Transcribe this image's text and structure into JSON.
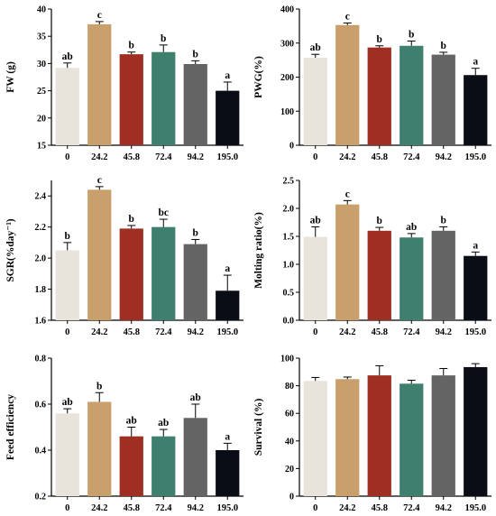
{
  "colors": [
    "#e8e4dc",
    "#c9a06c",
    "#9e2f22",
    "#3f7f6e",
    "#646464",
    "#0a0d16"
  ],
  "chart_data": [
    {
      "type": "bar",
      "ylabel": "FW (g)",
      "categories": [
        "0",
        "24.2",
        "45.8",
        "72.4",
        "94.2",
        "195.0"
      ],
      "values": [
        29.2,
        37.2,
        31.7,
        32.1,
        29.9,
        25.0
      ],
      "errors": [
        0.9,
        0.5,
        0.4,
        1.3,
        0.6,
        1.6
      ],
      "letters": [
        "ab",
        "c",
        "b",
        "b",
        "b",
        "a"
      ],
      "ylim": [
        15,
        40
      ],
      "yticks": [
        15,
        20,
        25,
        30,
        35,
        40
      ],
      "ytick_labels": [
        "15",
        "20",
        "25",
        "30",
        "35",
        "40"
      ]
    },
    {
      "type": "bar",
      "ylabel": "PWG(%)",
      "categories": [
        "0",
        "24.2",
        "45.8",
        "72.4",
        "94.2",
        "195.0"
      ],
      "values": [
        257,
        353,
        287,
        292,
        266,
        206
      ],
      "errors": [
        10,
        6,
        5,
        14,
        7,
        20
      ],
      "letters": [
        "ab",
        "c",
        "b",
        "b",
        "b",
        "a"
      ],
      "ylim": [
        0,
        400
      ],
      "yticks": [
        0,
        100,
        200,
        300,
        400
      ],
      "ytick_labels": [
        "0",
        "100",
        "200",
        "300",
        "400"
      ]
    },
    {
      "type": "bar",
      "ylabel": "SGR(%day⁻¹)",
      "categories": [
        "0",
        "24.2",
        "45.8",
        "72.4",
        "94.2",
        "195.0"
      ],
      "values": [
        2.05,
        2.44,
        2.19,
        2.2,
        2.09,
        1.79
      ],
      "errors": [
        0.05,
        0.02,
        0.02,
        0.05,
        0.03,
        0.1
      ],
      "letters": [
        "b",
        "c",
        "b",
        "bc",
        "b",
        "a"
      ],
      "ylim": [
        1.6,
        2.5
      ],
      "yticks": [
        1.6,
        1.8,
        2.0,
        2.2,
        2.4
      ],
      "ytick_labels": [
        "1.6",
        "1.8",
        "2.0",
        "2.2",
        "2.4"
      ]
    },
    {
      "type": "bar",
      "ylabel": "Molting ratio(%)",
      "categories": [
        "0",
        "24.2",
        "45.8",
        "72.4",
        "94.2",
        "195.0"
      ],
      "values": [
        1.49,
        2.07,
        1.6,
        1.48,
        1.6,
        1.15
      ],
      "errors": [
        0.18,
        0.07,
        0.06,
        0.07,
        0.07,
        0.07
      ],
      "letters": [
        "ab",
        "c",
        "b",
        "ab",
        "b",
        "a"
      ],
      "ylim": [
        0,
        2.5
      ],
      "yticks": [
        0,
        0.5,
        1.0,
        1.5,
        2.0,
        2.5
      ],
      "ytick_labels": [
        "0.0",
        "0.5",
        "1.0",
        "1.5",
        "2.0",
        "2.5"
      ]
    },
    {
      "type": "bar",
      "ylabel": "Feed efficiency",
      "categories": [
        "0",
        "24.2",
        "45.8",
        "72.4",
        "94.2",
        "195.0"
      ],
      "values": [
        0.56,
        0.61,
        0.46,
        0.46,
        0.54,
        0.4
      ],
      "errors": [
        0.02,
        0.04,
        0.04,
        0.03,
        0.06,
        0.03
      ],
      "letters": [
        "ab",
        "b",
        "ab",
        "ab",
        "ab",
        "a"
      ],
      "ylim": [
        0.2,
        0.8
      ],
      "yticks": [
        0.2,
        0.4,
        0.6,
        0.8
      ],
      "ytick_labels": [
        "0.2",
        "0.4",
        "0.6",
        "0.8"
      ]
    },
    {
      "type": "bar",
      "ylabel": "Survival (%)",
      "categories": [
        "0",
        "24.2",
        "45.8",
        "72.4",
        "94.2",
        "195.0"
      ],
      "values": [
        83.5,
        84.8,
        87.5,
        81.5,
        87.5,
        93.5
      ],
      "errors": [
        2.5,
        1.5,
        7.0,
        2.5,
        5.0,
        2.5
      ],
      "letters": [
        "",
        "",
        "",
        "",
        "",
        ""
      ],
      "ylim": [
        0,
        100
      ],
      "yticks": [
        0,
        20,
        40,
        60,
        80,
        100
      ],
      "ytick_labels": [
        "0",
        "20",
        "40",
        "60",
        "80",
        "100"
      ]
    }
  ]
}
